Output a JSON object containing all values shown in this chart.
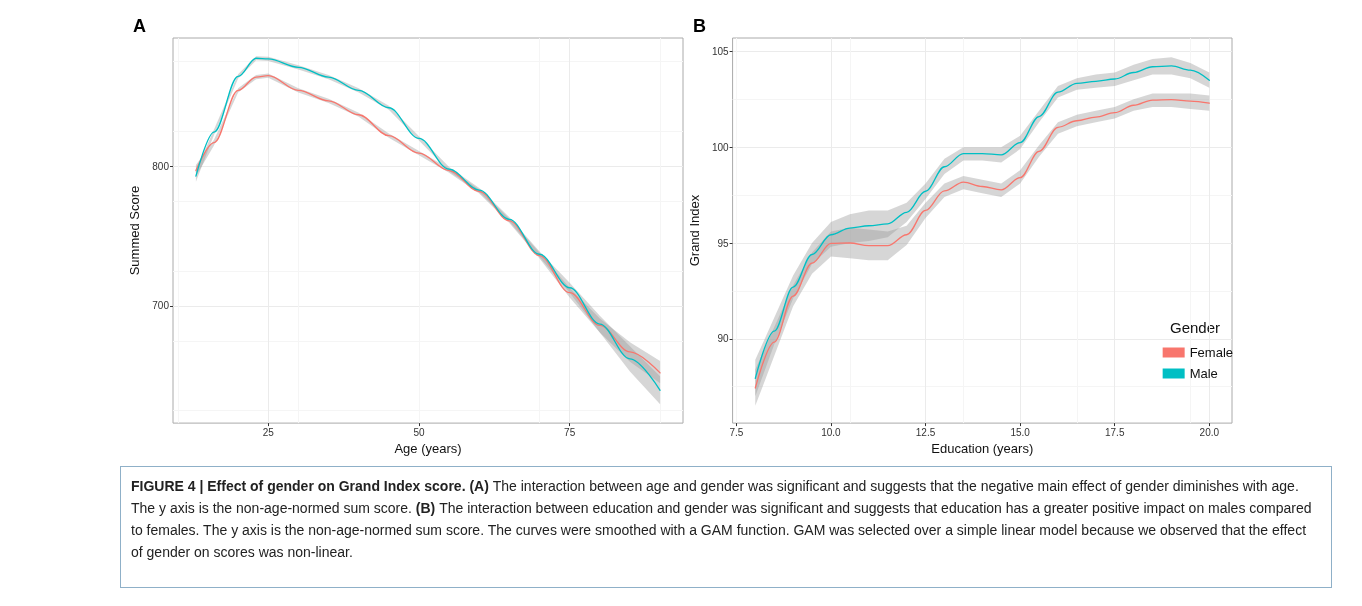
{
  "chart_data": [
    {
      "type": "line",
      "title": "A",
      "xlabel": "Age (years)",
      "ylabel": "Summed Score",
      "xlim": [
        9.2,
        93.8
      ],
      "xticks": [
        25,
        50,
        75
      ],
      "ylim": [
        616,
        892
      ],
      "yticks": [
        700,
        800
      ],
      "grid": true,
      "legend": false,
      "x": [
        13,
        16,
        20,
        23,
        25,
        30,
        35,
        40,
        45,
        50,
        55,
        60,
        65,
        70,
        75,
        80,
        85,
        90
      ],
      "series": [
        {
          "color": "#f8766d",
          "values": [
            797,
            817,
            854.5,
            864,
            865,
            854.5,
            847,
            837,
            822,
            809.5,
            797,
            782,
            761,
            736,
            709.5,
            686,
            667,
            652
          ],
          "lower": [
            793,
            815,
            853,
            862.5,
            863.5,
            853,
            845.5,
            835.5,
            820.5,
            808,
            795.5,
            780.5,
            759.5,
            734,
            706,
            681,
            660,
            644.5
          ],
          "upper": [
            801,
            819,
            856,
            865.5,
            866.5,
            856,
            848.5,
            838.5,
            823.5,
            811,
            798.5,
            783.5,
            762.5,
            738,
            713,
            691,
            674,
            660.5
          ]
        },
        {
          "color": "#00bfc4",
          "values": [
            793,
            824.5,
            864.5,
            877.5,
            877,
            871,
            864,
            854.5,
            842,
            820,
            798,
            783,
            762,
            737,
            713,
            687,
            662,
            639.5
          ],
          "lower": [
            789,
            822.5,
            863,
            876,
            875.5,
            869.5,
            862.5,
            853,
            840.5,
            818.5,
            796.5,
            781.5,
            760.5,
            735,
            709.5,
            681,
            653,
            629.5
          ],
          "upper": [
            797,
            826.5,
            866,
            879,
            878.5,
            872.5,
            865.5,
            856,
            843.5,
            821.5,
            799.5,
            784.5,
            763.5,
            739,
            716.5,
            693,
            671,
            649.5
          ]
        }
      ],
      "annotations": [
        "FIGURE 4 | Effect of gender on Grand Index score. (A)",
        "The interaction between age and gender was significant and suggests that the negative main effect of gender diminishes with age. The y axis is the non-age-normed sum score.",
        "(B)",
        "The interaction between education and gender was significant and suggests that education has a greater positive impact on males compared to females. The y axis is the non-age-normed sum score. The curves were smoothed with a GAM function. GAM was selected over a simple linear model because we observed that the effect of gender on scores was non-linear."
      ]
    },
    {
      "type": "line",
      "title": "B",
      "xlabel": "Education (years)",
      "ylabel": "Grand Index",
      "legend_title": "Gender",
      "legend": "bottom right",
      "xlim": [
        7.4,
        20.6
      ],
      "xticks": [
        7.5,
        {
          "value": 10,
          "label": "10.0"
        },
        12.5,
        {
          "value": 15,
          "label": "15.0"
        },
        17.5,
        {
          "value": 20,
          "label": "20.0"
        }
      ],
      "ylim": [
        85.6,
        105.7
      ],
      "yticks": [
        90,
        95,
        100,
        105
      ],
      "grid": true,
      "x": [
        8,
        8.5,
        9,
        9.5,
        10,
        10.5,
        11,
        11.5,
        12,
        12.5,
        13,
        13.5,
        14,
        14.5,
        15,
        15.5,
        16,
        16.5,
        17,
        17.5,
        18,
        18.5,
        19,
        19.5,
        20
      ],
      "series": [
        {
          "name": "Female",
          "color": "#f8766d",
          "values": [
            87.43,
            89.83,
            92.23,
            93.95,
            94.98,
            95.0,
            94.86,
            94.86,
            95.43,
            96.7,
            97.72,
            98.18,
            97.95,
            97.77,
            98.41,
            99.78,
            101.04,
            101.38,
            101.57,
            101.8,
            102.19,
            102.46,
            102.48,
            102.41,
            102.3
          ],
          "lower": [
            86.5,
            89.1,
            91.7,
            93.4,
            94.3,
            94.2,
            94.1,
            94.1,
            94.9,
            96.3,
            97.4,
            97.8,
            97.6,
            97.4,
            98.1,
            99.5,
            100.7,
            101.1,
            101.3,
            101.5,
            101.9,
            102.1,
            102.1,
            102.0,
            101.9
          ],
          "upper": [
            88.4,
            90.6,
            92.8,
            94.5,
            95.6,
            95.8,
            95.7,
            95.6,
            95.9,
            97.1,
            98.1,
            98.5,
            98.3,
            98.1,
            98.8,
            100.1,
            101.3,
            101.7,
            101.9,
            102.1,
            102.5,
            102.8,
            102.8,
            102.8,
            102.7
          ]
        },
        {
          "name": "Male",
          "color": "#00bfc4",
          "values": [
            87.93,
            90.4,
            92.7,
            94.4,
            95.43,
            95.78,
            95.9,
            96.0,
            96.6,
            97.7,
            98.98,
            99.67,
            99.67,
            99.6,
            100.24,
            101.6,
            102.87,
            103.33,
            103.44,
            103.56,
            103.9,
            104.2,
            104.24,
            104.02,
            103.49
          ],
          "lower": [
            87.0,
            89.7,
            92.1,
            93.9,
            94.8,
            95.0,
            95.1,
            95.3,
            96.1,
            97.3,
            98.6,
            99.3,
            99.3,
            99.2,
            99.9,
            101.3,
            102.6,
            103.0,
            103.1,
            103.2,
            103.5,
            103.8,
            103.8,
            103.6,
            103.1
          ],
          "upper": [
            88.9,
            91.1,
            93.3,
            95.0,
            96.1,
            96.5,
            96.7,
            96.7,
            97.1,
            98.1,
            99.4,
            100.0,
            100.0,
            100.0,
            100.6,
            101.9,
            103.2,
            103.6,
            103.8,
            103.9,
            104.3,
            104.6,
            104.7,
            104.4,
            103.9
          ]
        }
      ]
    }
  ]
}
